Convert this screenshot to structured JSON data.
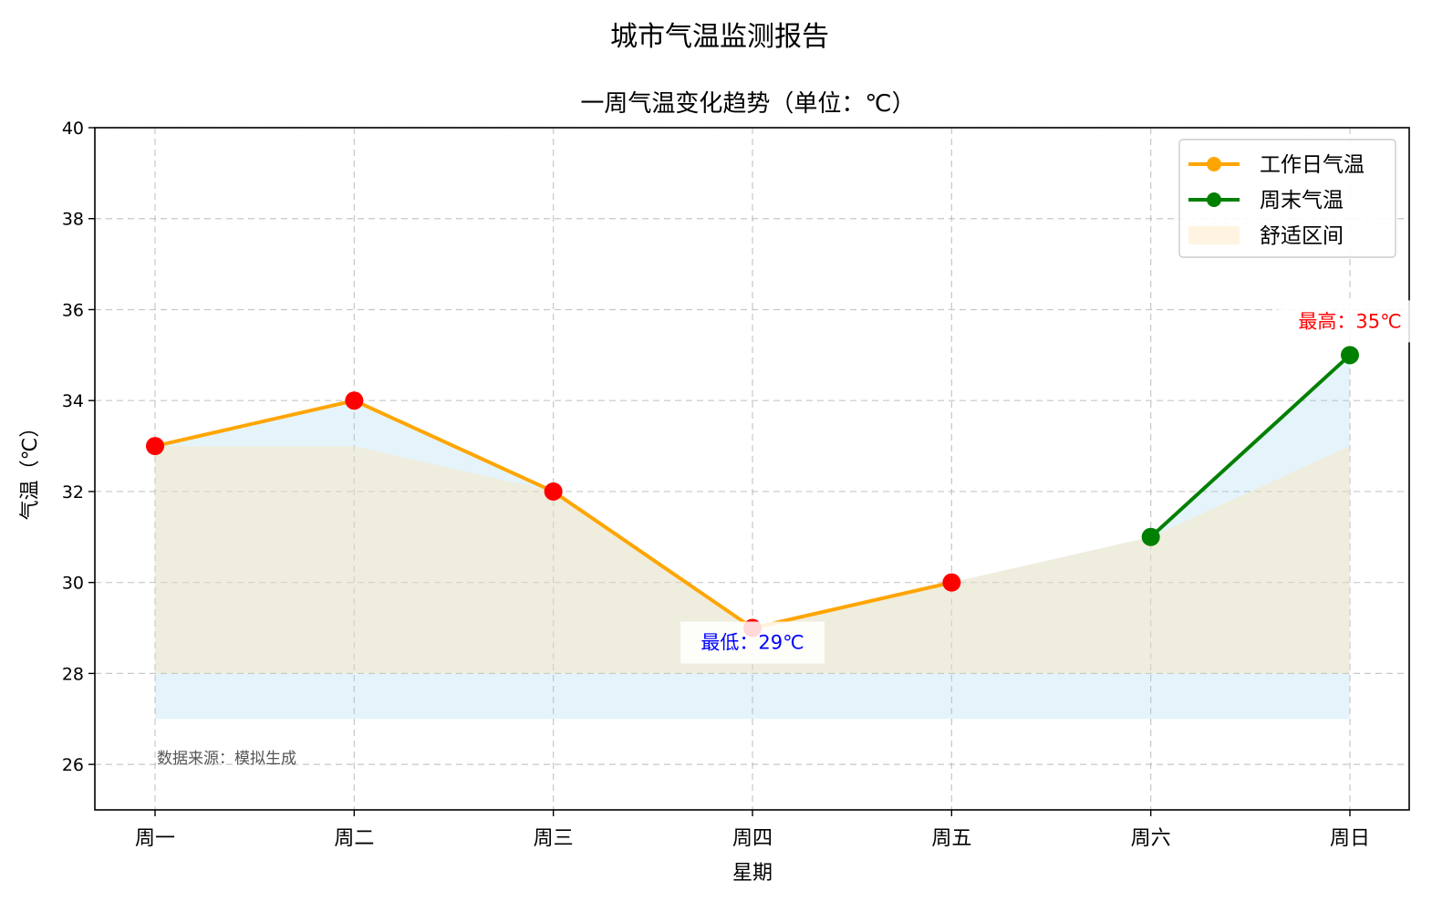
{
  "chart_data": {
    "type": "line",
    "suptitle": "城市气温监测报告",
    "title": "一周气温变化趋势（单位：℃）",
    "xlabel": "星期",
    "ylabel": "气温（℃）",
    "categories": [
      "周一",
      "周二",
      "周三",
      "周四",
      "周五",
      "周六",
      "周日"
    ],
    "ylim": [
      25,
      40
    ],
    "yticks": [
      26,
      28,
      30,
      32,
      34,
      36,
      38,
      40
    ],
    "grid": true,
    "legend_position": "top-right",
    "series": [
      {
        "name": "工作日气温",
        "x": [
          "周一",
          "周二",
          "周三",
          "周四",
          "周五"
        ],
        "values": [
          33,
          34,
          32,
          29,
          30
        ],
        "color": "#FFA500",
        "marker_color": "#FF0000"
      },
      {
        "name": "周末气温",
        "x": [
          "周六",
          "周日"
        ],
        "values": [
          31,
          35
        ],
        "color": "#008000",
        "marker_color": "#008000"
      }
    ],
    "temperature_area": {
      "values": [
        33,
        34,
        32,
        29,
        30,
        31,
        35
      ],
      "baseline": 27,
      "color": "#87CEEB"
    },
    "comfort_band": {
      "name": "舒适区间",
      "lower": 28,
      "upper": 33,
      "color": "#FFE4B5"
    },
    "annotations": [
      {
        "text": "最高：35℃",
        "category": "周日",
        "value": 35,
        "color": "#FF0000"
      },
      {
        "text": "最低：29℃",
        "category": "周四",
        "value": 29,
        "color": "#0000FF"
      }
    ],
    "note": "数据来源：模拟生成"
  }
}
